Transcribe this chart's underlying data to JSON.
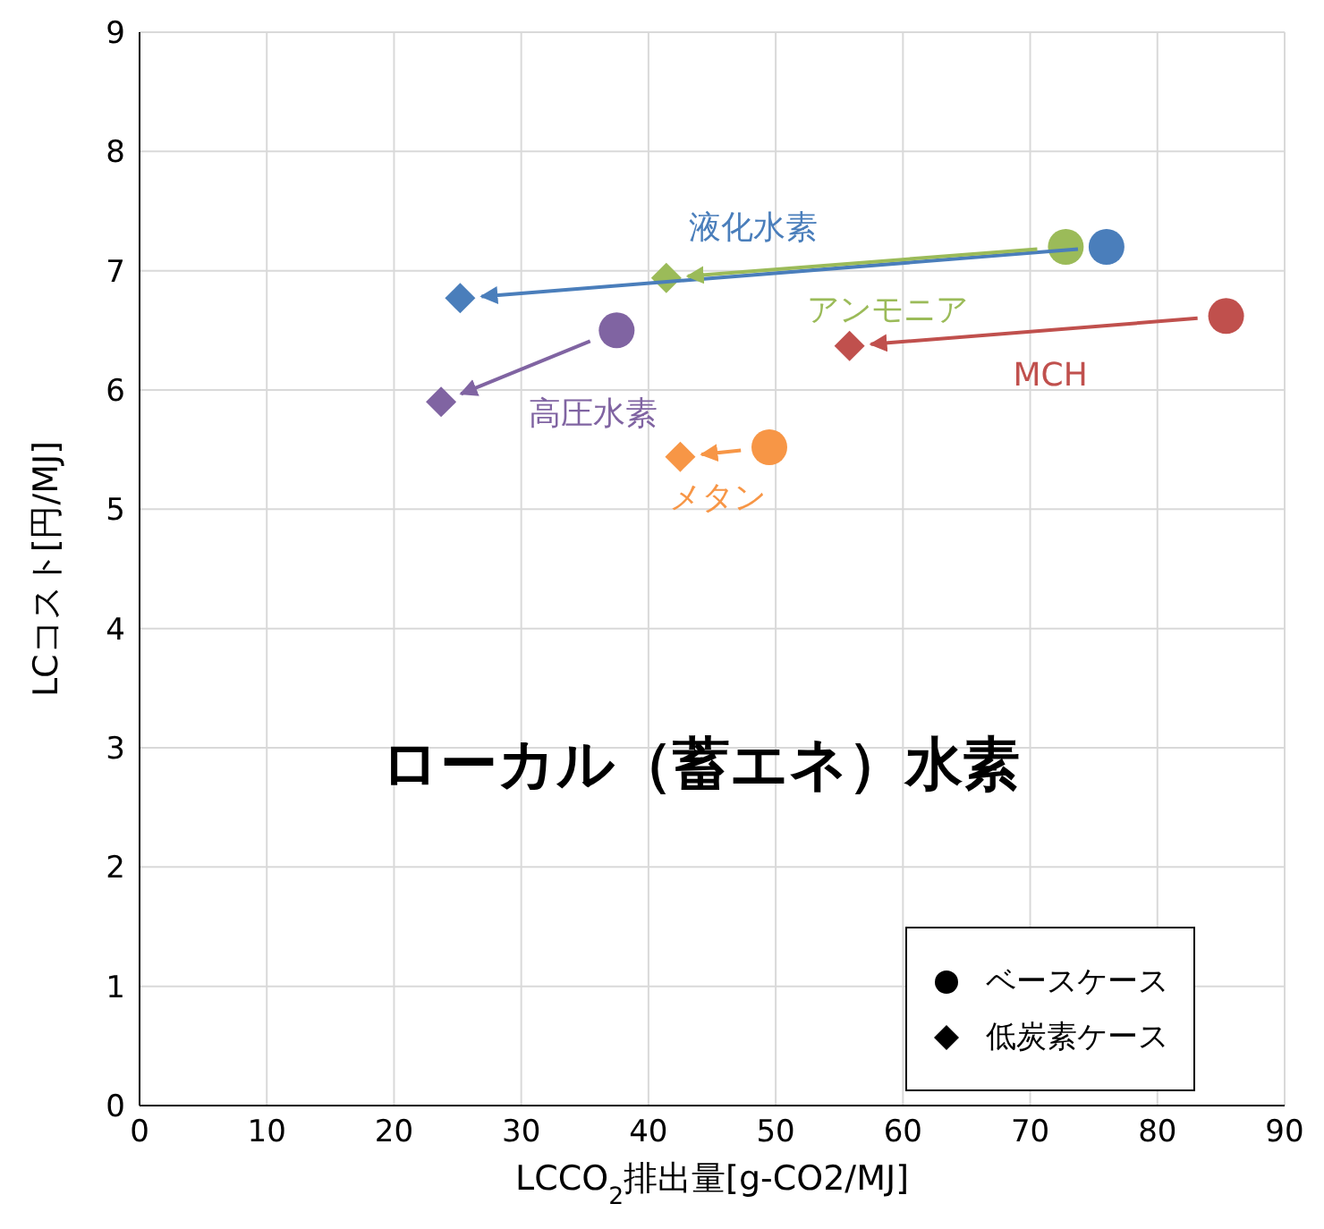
{
  "chart_data": {
    "type": "scatter",
    "title": "ローカル（蓄エネ）水素",
    "xlabel": "LCCO$_{2}$排出量[g-CO2/MJ]",
    "ylabel": "LCコスト[円/MJ]",
    "xlim": [
      0,
      90
    ],
    "xticks": [
      0,
      10,
      20,
      30,
      40,
      50,
      60,
      70,
      80,
      90
    ],
    "ylim": [
      0,
      9
    ],
    "yticks": [
      0,
      1,
      2,
      3,
      4,
      5,
      6,
      7,
      8,
      9
    ],
    "grid": true,
    "legend": "bottom right",
    "series": [
      {
        "name": "ベースケース",
        "color": "#000000",
        "marker": "circle",
        "x": [
          76.0,
          72.8,
          85.4,
          37.5,
          49.5
        ],
        "values": [
          7.2,
          7.2,
          6.62,
          6.5,
          5.52
        ],
        "colors": [
          "#4a7ebb",
          "#9bbb59",
          "#c0504d",
          "#8064a2",
          "#f79646"
        ]
      },
      {
        "name": "低炭素ケース",
        "color": "#000000",
        "marker": "diamond",
        "x": [
          25.2,
          41.4,
          55.8,
          23.7,
          42.5
        ],
        "values": [
          6.77,
          6.94,
          6.37,
          5.9,
          5.44
        ],
        "colors": [
          "#4a7ebb",
          "#9bbb59",
          "#c0504d",
          "#8064a2",
          "#f79646"
        ]
      }
    ],
    "annotations": [
      "液化水素",
      "アンモニア",
      "MCH",
      "高圧水素",
      "メタン"
    ]
  }
}
